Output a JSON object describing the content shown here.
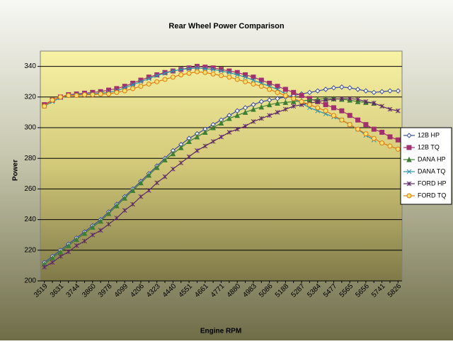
{
  "chart_data": {
    "type": "line",
    "title": "Rear Wheel Power Comparison",
    "x_label": "Engine RPM",
    "y_label": "Power",
    "categories": [
      "3519",
      null,
      "3631",
      null,
      "3744",
      null,
      "3860",
      null,
      "3978",
      null,
      "4099",
      null,
      "4206",
      null,
      "4323",
      null,
      "4440",
      null,
      "4551",
      null,
      "4661",
      null,
      "4771",
      null,
      "4880",
      null,
      "4983",
      null,
      "5086",
      null,
      "5188",
      null,
      "5287",
      null,
      "5384",
      null,
      "5477",
      null,
      "5565",
      null,
      "5656",
      null,
      "5741",
      null,
      "5826"
    ],
    "ylim": [
      200,
      350
    ],
    "yticks": [
      200,
      220,
      240,
      260,
      280,
      300,
      320,
      340
    ],
    "grid": true,
    "legend": "right",
    "series": [
      {
        "name": "12B HP",
        "color": "#3d4f9a",
        "marker": "diamond",
        "values": [
          212,
          216,
          220,
          224,
          228,
          232,
          236,
          240,
          245,
          250,
          255,
          260,
          265,
          270,
          275,
          280,
          285,
          289,
          293,
          296,
          299,
          302,
          305,
          308,
          311,
          313,
          315,
          317,
          318,
          319,
          320,
          321,
          322,
          323,
          324,
          325,
          326,
          326.5,
          326,
          325,
          324,
          323,
          323.5,
          324,
          324
        ]
      },
      {
        "name": "12B TQ",
        "color": "#a3306e",
        "marker": "square",
        "values": [
          315,
          318,
          320,
          321.5,
          322,
          322.5,
          323,
          323.5,
          324.5,
          325.5,
          327,
          329,
          331,
          333,
          334.5,
          336,
          337,
          338,
          339,
          340,
          339.5,
          339,
          338,
          337,
          336,
          334.5,
          333,
          331,
          329,
          327,
          325,
          323,
          321,
          319,
          317,
          315,
          313,
          311,
          308,
          305,
          302,
          299,
          297,
          294,
          292
        ]
      },
      {
        "name": "DANA HP",
        "color": "#3f7f35",
        "marker": "triangle",
        "values": [
          211,
          215,
          219,
          223,
          227,
          231,
          235,
          239,
          244,
          249,
          254,
          259,
          264,
          269,
          274,
          279,
          283,
          287,
          291,
          294,
          297,
          300,
          303,
          306,
          308,
          310,
          312,
          313.5,
          315,
          316,
          316.5,
          317,
          317.5,
          318,
          318.5,
          319,
          319,
          318.5,
          318,
          317,
          316.5,
          316,
          null,
          null,
          null
        ]
      },
      {
        "name": "DANA TQ",
        "color": "#2f93ab",
        "marker": "x",
        "values": [
          314,
          317,
          319.5,
          321,
          321.5,
          322,
          322,
          322.5,
          323,
          324,
          326,
          328,
          330,
          332,
          334,
          335.5,
          337,
          338,
          338.5,
          339,
          338.5,
          338,
          337,
          336,
          334.5,
          333,
          331,
          329,
          327,
          325,
          322,
          319,
          316,
          313,
          311,
          309,
          307,
          305,
          302,
          299,
          295,
          292,
          null,
          null,
          null
        ]
      },
      {
        "name": "FORD  HP",
        "color": "#5e2a66",
        "marker": "star",
        "values": [
          209,
          212,
          216,
          219,
          223,
          226,
          230,
          233,
          237,
          241,
          246,
          250,
          255,
          259,
          264,
          268,
          273,
          277,
          281,
          285,
          288,
          291,
          294,
          297,
          299,
          301,
          304,
          306,
          308,
          310,
          312,
          314,
          315,
          316,
          317,
          318,
          318.5,
          319,
          319,
          318.5,
          317,
          316,
          314,
          312,
          311
        ]
      },
      {
        "name": "FORD TQ",
        "color": "#e07a10",
        "marker": "circle",
        "values": [
          314,
          318,
          320,
          321,
          321,
          321.5,
          321.5,
          322,
          322,
          323,
          324,
          325.5,
          327,
          328.5,
          330,
          331.5,
          333,
          334.5,
          335.5,
          336.5,
          336,
          335,
          334,
          333,
          331.5,
          330,
          328.5,
          327,
          325,
          323,
          321,
          319,
          317,
          315,
          313,
          311,
          308,
          305,
          302,
          299,
          296,
          293,
          290,
          288,
          286
        ]
      }
    ]
  }
}
